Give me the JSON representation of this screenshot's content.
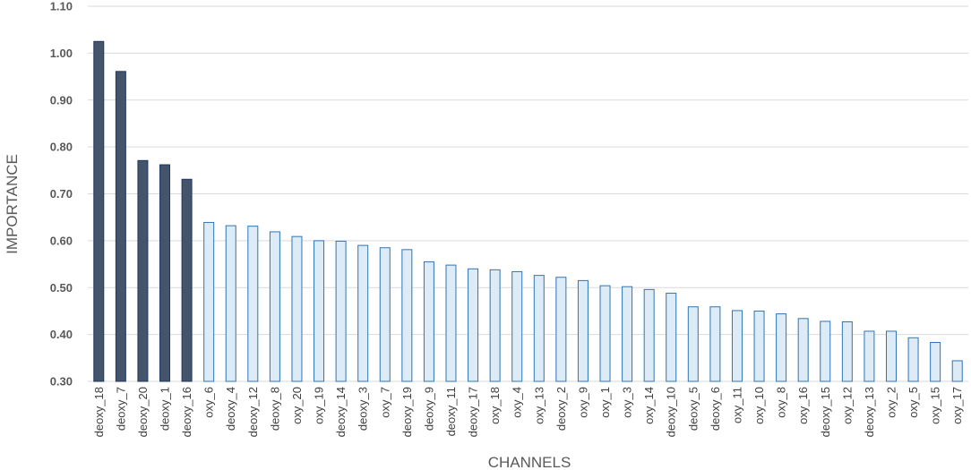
{
  "chart_data": {
    "type": "bar",
    "title": "",
    "xlabel": "CHANNELS",
    "ylabel": "IMPORTANCE",
    "ylim": [
      0.3,
      1.1
    ],
    "yticks": [
      "0.30",
      "0.40",
      "0.50",
      "0.60",
      "0.70",
      "0.80",
      "0.90",
      "1.00",
      "1.10"
    ],
    "grid": true,
    "highlight_count": 5,
    "colors": {
      "highlight_fill": "#44546a",
      "highlight_stroke": "#1f3864",
      "normal_fill": "#ddebf7",
      "normal_stroke": "#2e75b6",
      "grid": "#d9d9d9"
    },
    "categories": [
      "deoxy_18",
      "deoxy_7",
      "deoxy_20",
      "deoxy_1",
      "deoxy_16",
      "oxy_6",
      "deoxy_4",
      "deoxy_12",
      "deoxy_8",
      "oxy_20",
      "oxy_19",
      "deoxy_14",
      "deoxy_3",
      "oxy_7",
      "deoxy_19",
      "deoxy_9",
      "deoxy_11",
      "deoxy_17",
      "oxy_18",
      "oxy_4",
      "oxy_13",
      "deoxy_2",
      "oxy_9",
      "oxy_1",
      "oxy_3",
      "oxy_14",
      "deoxy_10",
      "deoxy_5",
      "deoxy_6",
      "oxy_11",
      "oxy_10",
      "oxy_8",
      "oxy_16",
      "deoxy_15",
      "oxy_12",
      "deoxy_13",
      "oxy_2",
      "oxy_5",
      "oxy_15",
      "oxy_17"
    ],
    "values": [
      1.025,
      0.961,
      0.771,
      0.762,
      0.731,
      0.639,
      0.632,
      0.631,
      0.619,
      0.609,
      0.6,
      0.599,
      0.59,
      0.585,
      0.581,
      0.555,
      0.548,
      0.54,
      0.538,
      0.534,
      0.526,
      0.522,
      0.515,
      0.504,
      0.502,
      0.496,
      0.488,
      0.459,
      0.459,
      0.451,
      0.45,
      0.444,
      0.434,
      0.428,
      0.427,
      0.407,
      0.407,
      0.393,
      0.383,
      0.344
    ]
  }
}
